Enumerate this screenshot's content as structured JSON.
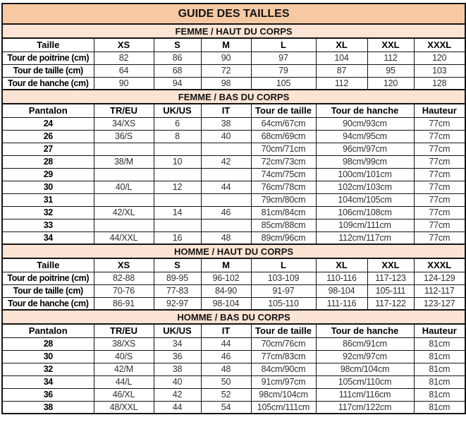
{
  "title": "GUIDE DES TAILLES",
  "colors": {
    "title_bg": "#f6c9a2",
    "section_bg": "#fbe4d4",
    "border": "#141414",
    "header_text": "#000000",
    "value_text": "#303030"
  },
  "sections": [
    {
      "id": "femme-haut",
      "header": "FEMME / HAUT DU CORPS",
      "columns": [
        "Taille",
        "XS",
        "S",
        "M",
        "L",
        "XL",
        "XXL",
        "XXXL"
      ],
      "col_spans": [
        1,
        1,
        1,
        1,
        1,
        1,
        1,
        1
      ],
      "rows": [
        {
          "label": "Tour de poitrine (cm)",
          "values": [
            "82",
            "86",
            "90",
            "97",
            "104",
            "112",
            "120"
          ]
        },
        {
          "label": "Tour de taille (cm)",
          "values": [
            "64",
            "68",
            "72",
            "79",
            "87",
            "95",
            "103"
          ]
        },
        {
          "label": "Tour de hanche (cm)",
          "values": [
            "90",
            "94",
            "98",
            "105",
            "112",
            "120",
            "128"
          ]
        }
      ]
    },
    {
      "id": "femme-bas",
      "header": "FEMME / BAS DU CORPS",
      "columns": [
        "Pantalon",
        "TR/EU",
        "UK/US",
        "IT",
        "Tour de taille",
        "Tour de hanche",
        "Hauteur"
      ],
      "col_spans": [
        1,
        1,
        1,
        1,
        1,
        2,
        1
      ],
      "rows": [
        {
          "label": "24",
          "values": [
            "34/XS",
            "6",
            "38",
            "64cm/67cm",
            "90cm/93cm",
            "77cm"
          ]
        },
        {
          "label": "26",
          "values": [
            "36/S",
            "8",
            "40",
            "68cm/69cm",
            "94cm/95cm",
            "77cm"
          ]
        },
        {
          "label": "27",
          "values": [
            "",
            "",
            "",
            "70cm/71cm",
            "96cm/97cm",
            "77cm"
          ]
        },
        {
          "label": "28",
          "values": [
            "38/M",
            "10",
            "42",
            "72cm/73cm",
            "98cm/99cm",
            "77cm"
          ]
        },
        {
          "label": "29",
          "values": [
            "",
            "",
            "",
            "74cm/75cm",
            "100cm/101cm",
            "77cm"
          ]
        },
        {
          "label": "30",
          "values": [
            "40/L",
            "12",
            "44",
            "76cm/78cm",
            "102cm/103cm",
            "77cm"
          ]
        },
        {
          "label": "31",
          "values": [
            "",
            "",
            "",
            "79cm/80cm",
            "104cm/105cm",
            "77cm"
          ]
        },
        {
          "label": "32",
          "values": [
            "42/XL",
            "14",
            "46",
            "81cm/84cm",
            "106cm/108cm",
            "77cm"
          ]
        },
        {
          "label": "33",
          "values": [
            "",
            "",
            "",
            "85cm/88cm",
            "109cm/111cm",
            "77cm"
          ]
        },
        {
          "label": "34",
          "values": [
            "44/XXL",
            "16",
            "48",
            "89cm/96cm",
            "112cm/117cm",
            "77cm"
          ]
        }
      ]
    },
    {
      "id": "homme-haut",
      "header": "HOMME / HAUT DU CORPS",
      "columns": [
        "Taille",
        "XS",
        "S",
        "M",
        "L",
        "XL",
        "XXL",
        "XXXL"
      ],
      "col_spans": [
        1,
        1,
        1,
        1,
        1,
        1,
        1,
        1
      ],
      "rows": [
        {
          "label": "Tour de poitrine (cm)",
          "values": [
            "82-88",
            "89-95",
            "96-102",
            "103-109",
            "110-116",
            "117-123",
            "124-129"
          ]
        },
        {
          "label": "Tour de taille (cm)",
          "values": [
            "70-76",
            "77-83",
            "84-90",
            "91-97",
            "98-104",
            "105-111",
            "112-117"
          ]
        },
        {
          "label": "Tour de hanche (cm)",
          "values": [
            "86-91",
            "92-97",
            "98-104",
            "105-110",
            "111-116",
            "117-122",
            "123-127"
          ]
        }
      ]
    },
    {
      "id": "homme-bas",
      "header": "HOMME / BAS DU CORPS",
      "columns": [
        "Pantalon",
        "TR/EU",
        "UK/US",
        "IT",
        "Tour de taille",
        "Tour de hanche",
        "Hauteur"
      ],
      "col_spans": [
        1,
        1,
        1,
        1,
        1,
        2,
        1
      ],
      "rows": [
        {
          "label": "28",
          "values": [
            "38/XS",
            "34",
            "44",
            "70cm/76cm",
            "86cm/91cm",
            "81cm"
          ]
        },
        {
          "label": "30",
          "values": [
            "40/S",
            "36",
            "46",
            "77cm/83cm",
            "92cm/97cm",
            "81cm"
          ]
        },
        {
          "label": "32",
          "values": [
            "42/M",
            "38",
            "48",
            "84cm/90cm",
            "98cm/104cm",
            "81cm"
          ]
        },
        {
          "label": "34",
          "values": [
            "44/L",
            "40",
            "50",
            "91cm/97cm",
            "105cm/110cm",
            "81cm"
          ]
        },
        {
          "label": "36",
          "values": [
            "46/XL",
            "42",
            "52",
            "98cm/104cm",
            "111cm/116cm",
            "81cm"
          ]
        },
        {
          "label": "38",
          "values": [
            "48/XXL",
            "44",
            "54",
            "105cm/111cm",
            "117cm/122cm",
            "81cm"
          ]
        }
      ]
    }
  ],
  "layout": {
    "grid_col_widths": [
      130,
      85,
      67,
      71,
      92,
      73,
      66,
      73
    ]
  }
}
